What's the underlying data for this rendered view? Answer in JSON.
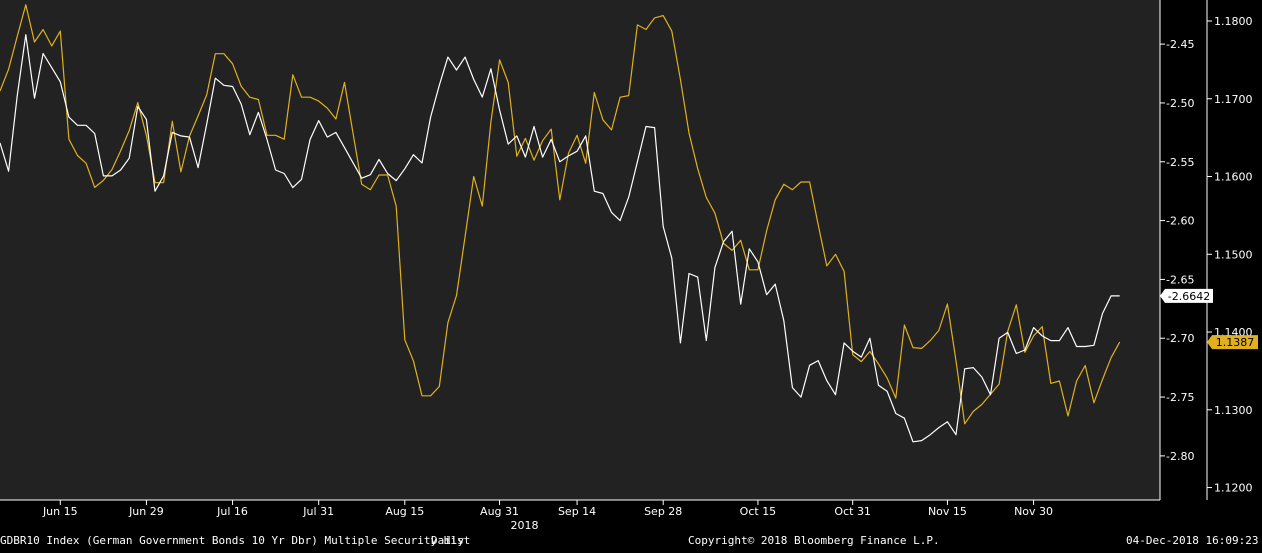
{
  "footer": {
    "security": "GDBR10 Index (German Government Bonds 10 Yr Dbr) Multiple Security Hist",
    "frequency": "Daily",
    "copyright": "Copyright© 2018 Bloomberg Finance L.P.",
    "timestamp": "04-Dec-2018 16:09:23"
  },
  "colors": {
    "background": "#000000",
    "plot_bg": "#222222",
    "white_series": "#ffffff",
    "gold_series": "#e0b020"
  },
  "chart_data": {
    "type": "line",
    "x_tick_labels": [
      "Jun 15",
      "Jun 29",
      "Jul 16",
      "Jul 31",
      "Aug 15",
      "Aug 31",
      "Sep 14",
      "Sep 28",
      "Oct 15",
      "Oct 31",
      "Nov 15",
      "Nov 30"
    ],
    "x_tick_index": [
      7,
      17,
      27,
      37,
      47,
      58,
      67,
      77,
      88,
      99,
      110,
      120
    ],
    "year_label": "2018",
    "y_axis_inner": {
      "ticks": [
        "-2.45",
        "-2.50",
        "-2.55",
        "-2.60",
        "-2.65",
        "-2.70",
        "-2.75",
        "-2.80"
      ],
      "range": [
        -2.8375,
        -2.4125
      ]
    },
    "y_axis_outer": {
      "ticks": [
        "1.1800",
        "1.1700",
        "1.1600",
        "1.1500",
        "1.1400",
        "1.1300",
        "1.1200"
      ],
      "range": [
        1.1184,
        1.1827
      ]
    },
    "series": [
      {
        "color": "#ffffff",
        "axis": "inner",
        "last_label": "-2.6642",
        "values": [
          -2.534,
          -2.558,
          -2.494,
          -2.442,
          -2.496,
          -2.458,
          -2.47,
          -2.482,
          -2.512,
          -2.519,
          -2.519,
          -2.526,
          -2.562,
          -2.562,
          -2.557,
          -2.547,
          -2.503,
          -2.514,
          -2.575,
          -2.562,
          -2.525,
          -2.528,
          -2.529,
          -2.555,
          -2.518,
          -2.479,
          -2.485,
          -2.486,
          -2.501,
          -2.527,
          -2.508,
          -2.531,
          -2.557,
          -2.56,
          -2.572,
          -2.565,
          -2.531,
          -2.515,
          -2.529,
          -2.525,
          -2.538,
          -2.551,
          -2.564,
          -2.561,
          -2.548,
          -2.56,
          -2.566,
          -2.556,
          -2.544,
          -2.551,
          -2.512,
          -2.485,
          -2.461,
          -2.472,
          -2.461,
          -2.48,
          -2.495,
          -2.471,
          -2.506,
          -2.535,
          -2.528,
          -2.546,
          -2.52,
          -2.546,
          -2.531,
          -2.55,
          -2.545,
          -2.541,
          -2.528,
          -2.575,
          -2.577,
          -2.593,
          -2.6,
          -2.58,
          -2.55,
          -2.52,
          -2.521,
          -2.605,
          -2.632,
          -2.704,
          -2.645,
          -2.648,
          -2.702,
          -2.64,
          -2.618,
          -2.609,
          -2.671,
          -2.624,
          -2.635,
          -2.663,
          -2.654,
          -2.685,
          -2.742,
          -2.75,
          -2.723,
          -2.719,
          -2.736,
          -2.748,
          -2.704,
          -2.711,
          -2.716,
          -2.7,
          -2.74,
          -2.745,
          -2.764,
          -2.768,
          -2.788,
          -2.787,
          -2.782,
          -2.776,
          -2.771,
          -2.782,
          -2.726,
          -2.725,
          -2.733,
          -2.748,
          -2.7,
          -2.695,
          -2.713,
          -2.71,
          -2.691,
          -2.698,
          -2.702,
          -2.702,
          -2.691,
          -2.707,
          -2.707,
          -2.706,
          -2.679,
          -2.664,
          -2.664
        ]
      },
      {
        "color": "#e0b020",
        "axis": "outer",
        "last_label": "1.1387",
        "values": [
          1.171,
          1.1738,
          1.178,
          1.1821,
          1.1773,
          1.1789,
          1.1768,
          1.1787,
          1.1648,
          1.1627,
          1.1617,
          1.1586,
          1.1595,
          1.1609,
          1.1633,
          1.1659,
          1.1695,
          1.1653,
          1.1592,
          1.1592,
          1.1671,
          1.1606,
          1.1652,
          1.1678,
          1.1705,
          1.1758,
          1.1758,
          1.1745,
          1.1716,
          1.1702,
          1.1699,
          1.1653,
          1.1653,
          1.1648,
          1.1731,
          1.1702,
          1.1702,
          1.1697,
          1.1688,
          1.1674,
          1.1721,
          1.1655,
          1.159,
          1.1583,
          1.1602,
          1.1602,
          1.1562,
          1.139,
          1.1363,
          1.1318,
          1.1318,
          1.133,
          1.1412,
          1.1447,
          1.1523,
          1.16,
          1.1562,
          1.167,
          1.175,
          1.1721,
          1.1626,
          1.1649,
          1.1621,
          1.1646,
          1.1661,
          1.157,
          1.163,
          1.1653,
          1.1617,
          1.1708,
          1.1673,
          1.166,
          1.1702,
          1.1704,
          1.1795,
          1.1789,
          1.1804,
          1.1807,
          1.1787,
          1.1725,
          1.1656,
          1.161,
          1.1573,
          1.1553,
          1.1514,
          1.1505,
          1.1518,
          1.148,
          1.148,
          1.153,
          1.157,
          1.159,
          1.1583,
          1.1593,
          1.1593,
          1.1538,
          1.1485,
          1.15,
          1.1478,
          1.1371,
          1.1362,
          1.1375,
          1.1359,
          1.1341,
          1.1315,
          1.1409,
          1.138,
          1.1379,
          1.1389,
          1.1402,
          1.1436,
          1.1363,
          1.1282,
          1.1298,
          1.1307,
          1.132,
          1.1333,
          1.1401,
          1.1435,
          1.1374,
          1.1395,
          1.1407,
          1.1334,
          1.1337,
          1.1292,
          1.1337,
          1.1357,
          1.1309,
          1.1339,
          1.1367,
          1.1387
        ]
      }
    ]
  }
}
